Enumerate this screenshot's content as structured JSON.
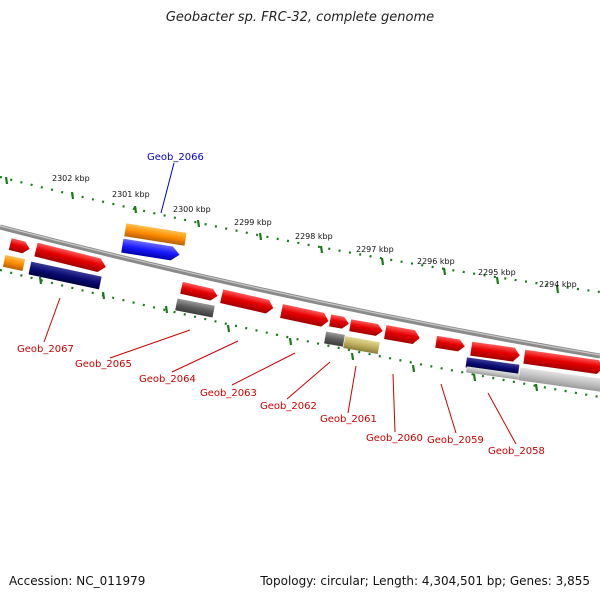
{
  "title": "Geobacter sp. FRC-32, complete genome",
  "footer": {
    "accession": "Accession: NC_011979",
    "summary": "Topology: circular; Length: 4,304,501 bp; Genes: 3,855"
  },
  "colors": {
    "backbone": "#8a8a8a",
    "tick": "#1a7a1a",
    "highlight_label": "#0000cc",
    "label": "#cc0000"
  },
  "ticks": [
    {
      "label": "2302 kbp"
    },
    {
      "label": "2301 kbp"
    },
    {
      "label": "2300 kbp"
    },
    {
      "label": "2299 kbp"
    },
    {
      "label": "2298 kbp"
    },
    {
      "label": "2297 kbp"
    },
    {
      "label": "2296 kbp"
    },
    {
      "label": "2295 kbp"
    },
    {
      "label": "2294 kbp"
    }
  ],
  "gene_labels": [
    {
      "text": "Geob_2066",
      "highlight": true
    },
    {
      "text": "Geob_2067"
    },
    {
      "text": "Geob_2065"
    },
    {
      "text": "Geob_2064"
    },
    {
      "text": "Geob_2063"
    },
    {
      "text": "Geob_2062"
    },
    {
      "text": "Geob_2061"
    },
    {
      "text": "Geob_2060"
    },
    {
      "text": "Geob_2059"
    },
    {
      "text": "Geob_2058"
    }
  ]
}
